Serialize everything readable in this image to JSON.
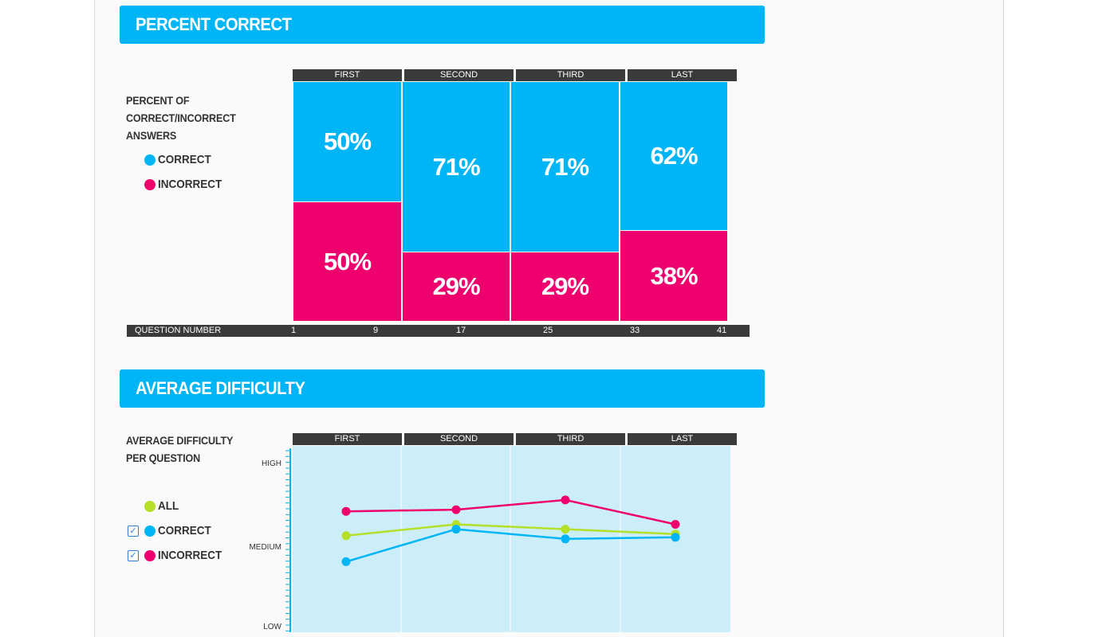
{
  "section1": {
    "title": "PERCENT CORRECT"
  },
  "section2": {
    "title": "AVERAGE DIFFICULTY"
  },
  "quarters": [
    "FIRST",
    "SECOND",
    "THIRD",
    "LAST"
  ],
  "legend1": {
    "title_lines": [
      "PERCENT OF",
      "CORRECT/INCORRECT",
      "ANSWERS"
    ],
    "correct": "CORRECT",
    "incorrect": "INCORRECT"
  },
  "legend2": {
    "title_lines": [
      "AVERAGE DIFFICULTY",
      "PER QUESTION"
    ],
    "all": "ALL",
    "correct": "CORRECT",
    "incorrect": "INCORRECT",
    "correct_checked": true,
    "incorrect_checked": true
  },
  "question_bar": {
    "label": "QUESTION NUMBER",
    "ticks": [
      "1",
      "9",
      "17",
      "25",
      "33",
      "41"
    ]
  },
  "colors": {
    "correct": "#00b5f5",
    "incorrect": "#ee006d",
    "all": "#b4e02a",
    "header": "#3a3a3a",
    "plot_bg": "#cceef9"
  },
  "chart_data": [
    {
      "type": "bar",
      "stacked": true,
      "title": "PERCENT CORRECT",
      "categories": [
        "FIRST",
        "SECOND",
        "THIRD",
        "LAST"
      ],
      "series": [
        {
          "name": "CORRECT",
          "values": [
            50,
            71,
            71,
            62
          ],
          "labels": [
            "50%",
            "71%",
            "71%",
            "62%"
          ]
        },
        {
          "name": "INCORRECT",
          "values": [
            50,
            29,
            29,
            38
          ],
          "labels": [
            "50%",
            "29%",
            "29%",
            "38%"
          ]
        }
      ],
      "xlabel": "QUESTION NUMBER",
      "question_ticks": [
        1,
        9,
        17,
        25,
        33,
        41
      ],
      "ylim": [
        0,
        100
      ]
    },
    {
      "type": "line",
      "title": "AVERAGE DIFFICULTY",
      "categories": [
        "FIRST",
        "SECOND",
        "THIRD",
        "LAST"
      ],
      "y_tick_labels": [
        "HIGH",
        "MEDIUM",
        "LOW"
      ],
      "ylim": [
        0,
        100
      ],
      "series": [
        {
          "name": "ALL",
          "values": [
            56,
            63,
            60,
            57
          ]
        },
        {
          "name": "CORRECT",
          "values": [
            40,
            60,
            54,
            55
          ]
        },
        {
          "name": "INCORRECT",
          "values": [
            71,
            72,
            78,
            63
          ]
        }
      ]
    }
  ]
}
